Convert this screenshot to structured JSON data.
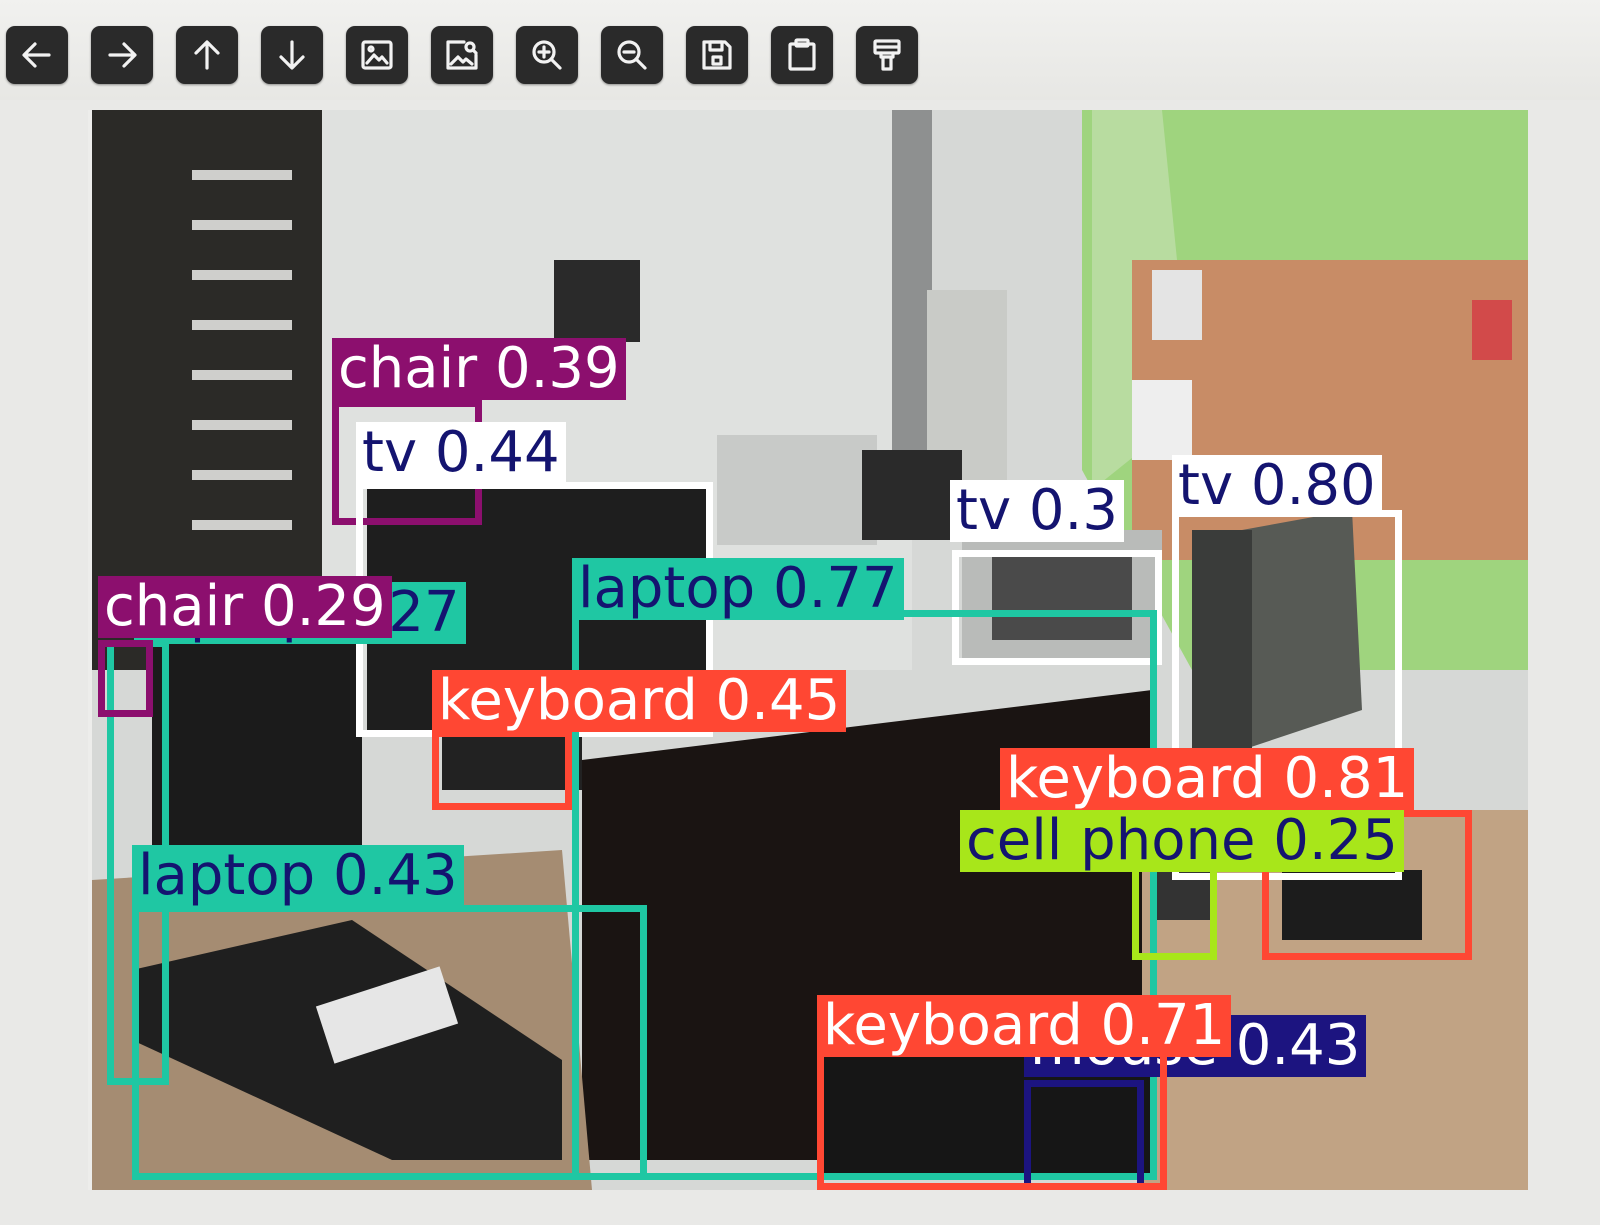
{
  "toolbar": {
    "buttons": [
      {
        "name": "back-button",
        "icon": "arrow-left-icon",
        "tooltip": ""
      },
      {
        "name": "forward-button",
        "icon": "arrow-right-icon",
        "tooltip": ""
      },
      {
        "name": "up-button",
        "icon": "arrow-up-icon",
        "tooltip": ""
      },
      {
        "name": "down-button",
        "icon": "arrow-down-icon",
        "tooltip": ""
      },
      {
        "name": "image-button",
        "icon": "image-icon",
        "tooltip": ""
      },
      {
        "name": "image-search-button",
        "icon": "image-search-icon",
        "tooltip": ""
      },
      {
        "name": "zoom-in-button",
        "icon": "zoom-in-icon",
        "tooltip": ""
      },
      {
        "name": "zoom-out-button",
        "icon": "zoom-out-icon",
        "tooltip": ""
      },
      {
        "name": "save-button",
        "icon": "save-icon",
        "tooltip": ""
      },
      {
        "name": "clipboard-button",
        "icon": "clipboard-icon",
        "tooltip": ""
      },
      {
        "name": "format-brush-button",
        "icon": "paint-brush-icon",
        "tooltip": ""
      }
    ]
  },
  "colors": {
    "chair": "#8c0f6e",
    "tv": "#ffffff",
    "laptop": "#1fc7a3",
    "keyboard": "#ff4733",
    "cell_phone": "#a8e61a",
    "mouse": "#1c1480",
    "text_dark": "#141470",
    "text_light": "#ffffff"
  },
  "detections": [
    {
      "cls": "chair",
      "label": "chair 0.39",
      "color": "chair",
      "text": "text_light"
    },
    {
      "cls": "tv",
      "label": "tv 0.44",
      "color": "tv",
      "text": "text_dark"
    },
    {
      "cls": "laptop",
      "label": "laptop 0.27",
      "color": "laptop",
      "text": "text_dark"
    },
    {
      "cls": "chair",
      "label": "chair 0.29",
      "color": "chair",
      "text": "text_light"
    },
    {
      "cls": "tv",
      "label": "tv 0.3",
      "color": "tv",
      "text": "text_dark"
    },
    {
      "cls": "tv",
      "label": "tv 0.80",
      "color": "tv",
      "text": "text_dark"
    },
    {
      "cls": "laptop",
      "label": "laptop 0.77",
      "color": "laptop",
      "text": "text_dark"
    },
    {
      "cls": "keyboard",
      "label": "keyboard 0.45",
      "color": "keyboard",
      "text": "text_light"
    },
    {
      "cls": "keyboard",
      "label": "keyboard 0.81",
      "color": "keyboard",
      "text": "text_light"
    },
    {
      "cls": "cell phone",
      "label": "cell phone 0.25",
      "color": "cell_phone",
      "text": "text_dark"
    },
    {
      "cls": "laptop",
      "label": "laptop 0.43",
      "color": "laptop",
      "text": "text_dark"
    },
    {
      "cls": "mouse",
      "label": "mouse 0.43",
      "color": "mouse",
      "text": "text_light"
    },
    {
      "cls": "keyboard",
      "label": "keyboard 0.71",
      "color": "keyboard",
      "text": "text_light"
    }
  ]
}
